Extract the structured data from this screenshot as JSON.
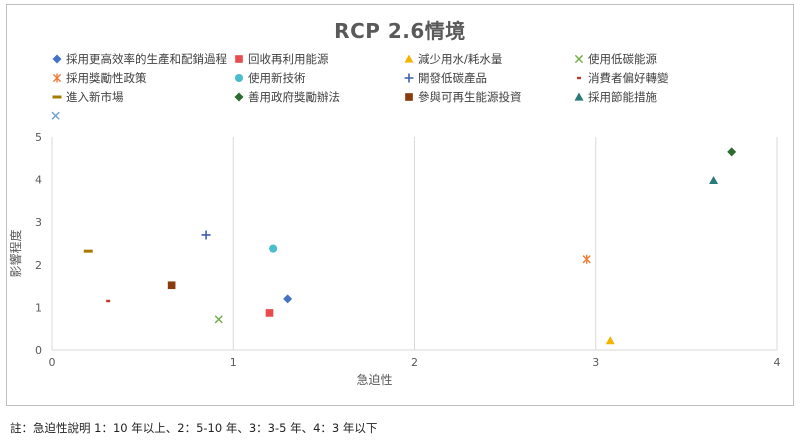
{
  "chart_data": {
    "type": "scatter",
    "title": "RCP 2.6情境",
    "xlabel": "急迫性",
    "ylabel": "影響程度",
    "xlim": [
      0,
      4
    ],
    "ylim": [
      0,
      5
    ],
    "x_ticks": [
      0,
      1,
      2,
      3,
      4
    ],
    "y_ticks": [
      0,
      1,
      2,
      3,
      4,
      5
    ],
    "grid": "vertical",
    "legend_position": "top",
    "series": [
      {
        "name": "採用更高效率的生產和配銷過程",
        "marker": "diamond",
        "color": "#4472c4",
        "x": 1.3,
        "y": 1.2
      },
      {
        "name": "回收再利用能源",
        "marker": "square",
        "color": "#e84c4c",
        "x": 1.2,
        "y": 0.87
      },
      {
        "name": "減少用水/耗水量",
        "marker": "triangle",
        "color": "#f4b400",
        "x": 3.08,
        "y": 0.22
      },
      {
        "name": "使用低碳能源",
        "marker": "x",
        "color": "#70ad47",
        "x": 0.92,
        "y": 0.72
      },
      {
        "name": "採用獎勵性政策",
        "marker": "asterisk",
        "color": "#ed7d31",
        "x": 2.95,
        "y": 2.13
      },
      {
        "name": "使用新技術",
        "marker": "circle",
        "color": "#4bbccc",
        "x": 1.22,
        "y": 2.38
      },
      {
        "name": "開發低碳產品",
        "marker": "plus",
        "color": "#3d5fb0",
        "x": 0.85,
        "y": 2.7
      },
      {
        "name": "消費者偏好轉變",
        "marker": "dash",
        "color": "#c0392b",
        "x": 0.31,
        "y": 1.15
      },
      {
        "name": "進入新市場",
        "marker": "longdash",
        "color": "#a67c00",
        "x": 0.2,
        "y": 2.32
      },
      {
        "name": "善用政府獎勵辦法",
        "marker": "diamond",
        "color": "#2e6b30",
        "x": 3.75,
        "y": 4.65
      },
      {
        "name": "參與可再生能源投資",
        "marker": "square",
        "color": "#8b3a0e",
        "x": 0.66,
        "y": 1.52
      },
      {
        "name": "採用節能措施",
        "marker": "triangle",
        "color": "#2a7a78",
        "x": 3.65,
        "y": 3.98
      },
      {
        "name": "",
        "marker": "x",
        "color": "#6f9fd8",
        "x": 0.02,
        "y": 5.5
      }
    ]
  },
  "footnote": "註：急迫性說明 1：10 年以上、2：5-10 年、3：3-5 年、4：3 年以下"
}
